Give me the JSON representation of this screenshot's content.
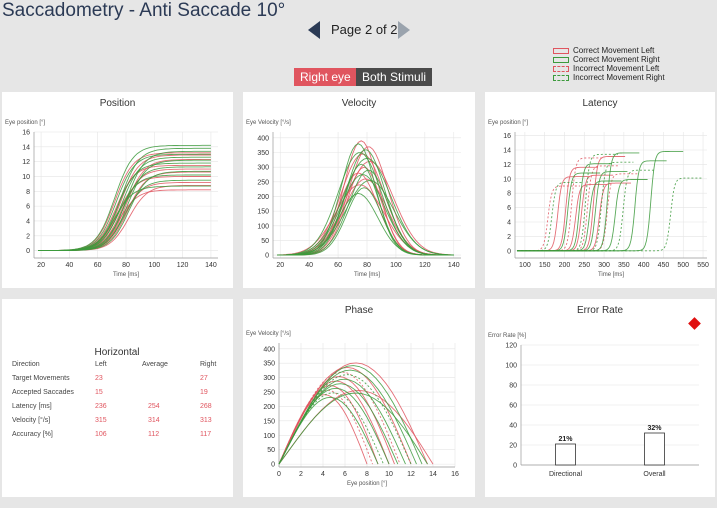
{
  "header": {
    "title": "Saccadometry - Anti Saccade 10°",
    "page_label": "Page 2 of 2"
  },
  "legend": [
    {
      "label": "Correct Movement Left",
      "color": "#e0555f",
      "dashed": false
    },
    {
      "label": "Correct Movement Right",
      "color": "#3c9a3c",
      "dashed": false
    },
    {
      "label": "Incorrect Movement Left",
      "color": "#e0555f",
      "dashed": true
    },
    {
      "label": "Incorrect Movement Right",
      "color": "#3c9a3c",
      "dashed": true
    }
  ],
  "filters": {
    "eye": "Right eye",
    "stimuli": "Both Stimuli"
  },
  "colors": {
    "left": "#e0555f",
    "right": "#3c9a3c",
    "accent": "#e0555f"
  },
  "panels": {
    "position": {
      "title": "Position",
      "ylabel": "Eye position [°]",
      "xlabel": "Time [ms]",
      "xticks": [
        "20",
        "40",
        "60",
        "80",
        "100",
        "120",
        "140"
      ],
      "yticks": [
        "0",
        "2",
        "4",
        "6",
        "8",
        "10",
        "12",
        "14",
        "16"
      ]
    },
    "velocity": {
      "title": "Velocity",
      "ylabel": "Eye Velocity [°/s]",
      "xlabel": "Time [ms]",
      "xticks": [
        "20",
        "40",
        "60",
        "80",
        "100",
        "120",
        "140"
      ],
      "yticks": [
        "0",
        "50",
        "100",
        "150",
        "200",
        "250",
        "300",
        "350",
        "400"
      ]
    },
    "latency": {
      "title": "Latency",
      "ylabel": "Eye position [°]",
      "xlabel": "Time [ms]",
      "xticks": [
        "100",
        "150",
        "200",
        "250",
        "300",
        "350",
        "400",
        "450",
        "500",
        "550"
      ],
      "yticks": [
        "0",
        "2",
        "4",
        "6",
        "8",
        "10",
        "12",
        "14",
        "16"
      ]
    },
    "phase": {
      "title": "Phase",
      "ylabel": "Eye Velocity [°/s]",
      "xlabel": "Eye position [°]",
      "xticks": [
        "0",
        "2",
        "4",
        "6",
        "8",
        "10",
        "12",
        "14",
        "16"
      ],
      "yticks": [
        "0",
        "50",
        "100",
        "150",
        "200",
        "250",
        "300",
        "350",
        "400"
      ]
    },
    "error_rate": {
      "title": "Error Rate",
      "ylabel": "Error Rate [%]",
      "yticks": [
        "0",
        "20",
        "40",
        "60",
        "80",
        "100",
        "120"
      ]
    }
  },
  "stats": {
    "heading": "Horizontal",
    "columns": [
      "Direction",
      "Left",
      "Average",
      "Right"
    ],
    "rows": [
      {
        "label": "Target Movements",
        "left": "23",
        "avg": "",
        "right": "27"
      },
      {
        "label": "Accepted Saccades",
        "left": "15",
        "avg": "",
        "right": "19"
      },
      {
        "label": "Latency [ms]",
        "left": "236",
        "avg": "254",
        "right": "268"
      },
      {
        "label": "Velocity [°/s]",
        "left": "315",
        "avg": "314",
        "right": "313"
      },
      {
        "label": "Accuracy [%]",
        "left": "106",
        "avg": "112",
        "right": "117"
      }
    ]
  },
  "chart_data": [
    {
      "type": "line",
      "title": "Position",
      "xlabel": "Time [ms]",
      "ylabel": "Eye position [°]",
      "xlim": [
        15,
        145
      ],
      "ylim": [
        -1,
        16
      ],
      "series_summary": "sigmoidal traces rising from 0 at ~60 ms to plateaus between 8 and 14.3° by ~110 ms",
      "plateaus_left": [
        8.2,
        8.8,
        9.2,
        10,
        10.6,
        11,
        11.5,
        12.3,
        12.9,
        13.2
      ],
      "plateaus_right": [
        8.7,
        9.5,
        10.2,
        10.7,
        11.3,
        11.8,
        12.2,
        12.6,
        13,
        13.4,
        13.8,
        14.2
      ]
    },
    {
      "type": "line",
      "title": "Velocity",
      "xlabel": "Time [ms]",
      "ylabel": "Eye Velocity [°/s]",
      "xlim": [
        15,
        145
      ],
      "ylim": [
        -10,
        420
      ],
      "series_summary": "bell-shaped velocity profiles peaking around 80 ms",
      "peaks_left": [
        390,
        370,
        345,
        320,
        300,
        280,
        260,
        240
      ],
      "peaks_right": [
        380,
        360,
        350,
        330,
        310,
        290,
        275,
        255,
        230,
        210
      ]
    },
    {
      "type": "line",
      "title": "Latency",
      "xlabel": "Time [ms]",
      "ylabel": "Eye position [°]",
      "xlim": [
        75,
        560
      ],
      "ylim": [
        -1,
        16.5
      ],
      "series_summary": "position traces shifted by saccade onset latency",
      "onsets_left": [
        140,
        165,
        185,
        200,
        210,
        225,
        240,
        255,
        270,
        290
      ],
      "onsets_right": [
        150,
        190,
        220,
        235,
        245,
        260,
        275,
        290,
        310,
        330,
        360,
        400,
        450
      ]
    },
    {
      "type": "line",
      "title": "Phase",
      "xlabel": "Eye position [°]",
      "ylabel": "Eye Velocity [°/s]",
      "xlim": [
        0,
        16
      ],
      "ylim": [
        -10,
        420
      ],
      "series_summary": "velocity vs position arcs ending at amplitudes 8–14°",
      "ends_left": [
        8,
        8.5,
        9,
        10,
        10.5,
        11,
        12,
        13.5,
        14
      ],
      "ends_right": [
        9,
        9.5,
        10,
        10.8,
        11.5,
        12,
        12.5,
        13,
        13.5
      ]
    },
    {
      "type": "bar",
      "title": "Error Rate",
      "ylabel": "Error Rate [%]",
      "categories": [
        "Directional",
        "Overall"
      ],
      "values": [
        21,
        32
      ],
      "labels": [
        "21%",
        "32%"
      ],
      "ylim": [
        0,
        120
      ]
    }
  ]
}
